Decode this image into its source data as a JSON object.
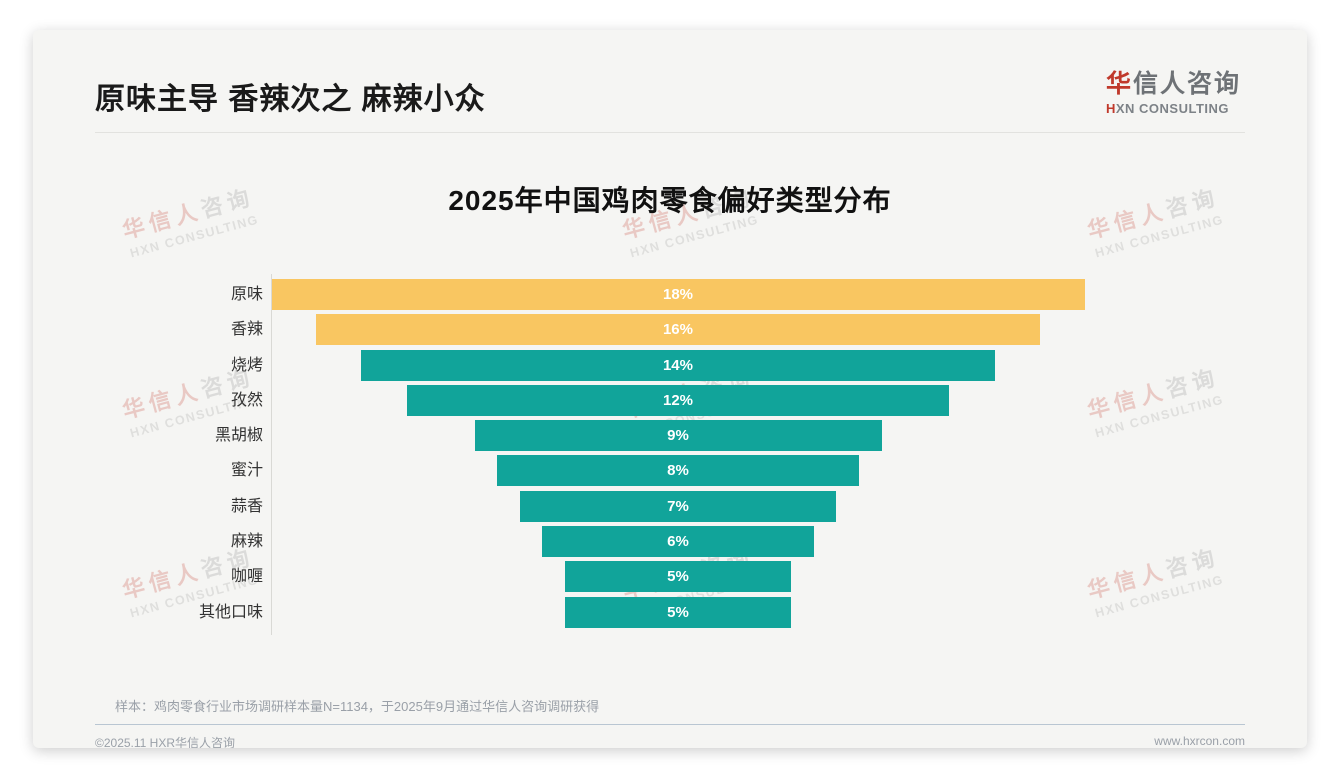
{
  "header": {
    "title": "原味主导 香辣次之 麻辣小众",
    "logo": {
      "zh_accent": "华",
      "zh_rest": "信人咨询",
      "en_accent": "H",
      "en_rest": "XN CONSULTING"
    }
  },
  "chart_data": {
    "type": "bar",
    "orientation": "horizontal-centered-funnel",
    "title": "2025年中国鸡肉零食偏好类型分布",
    "categories": [
      "原味",
      "香辣",
      "烧烤",
      "孜然",
      "黑胡椒",
      "蜜汁",
      "蒜香",
      "麻辣",
      "咖喱",
      "其他口味"
    ],
    "values": [
      18,
      16,
      14,
      12,
      9,
      8,
      7,
      6,
      5,
      5
    ],
    "value_labels": [
      "18%",
      "16%",
      "14%",
      "12%",
      "9%",
      "8%",
      "7%",
      "6%",
      "5%",
      "5%"
    ],
    "bar_colors": [
      "#f9c661",
      "#f9c661",
      "#11a49a",
      "#11a49a",
      "#11a49a",
      "#11a49a",
      "#11a49a",
      "#11a49a",
      "#11a49a",
      "#11a49a"
    ],
    "highlight_color": "#f9c661",
    "base_color": "#11a49a",
    "xlim": [
      0,
      18
    ],
    "unit": "%",
    "grid": false,
    "legend": "none"
  },
  "note": "样本：鸡肉零食行业市场调研样本量N=1134，于2025年9月通过华信人咨询调研获得",
  "footer": {
    "copyright": "©2025.11 HXR华信人咨询",
    "website": "www.hxrcon.com"
  },
  "watermark": {
    "zh_accent": "华信人",
    "zh_rest": "咨询",
    "en": "HXN CONSULTING"
  }
}
